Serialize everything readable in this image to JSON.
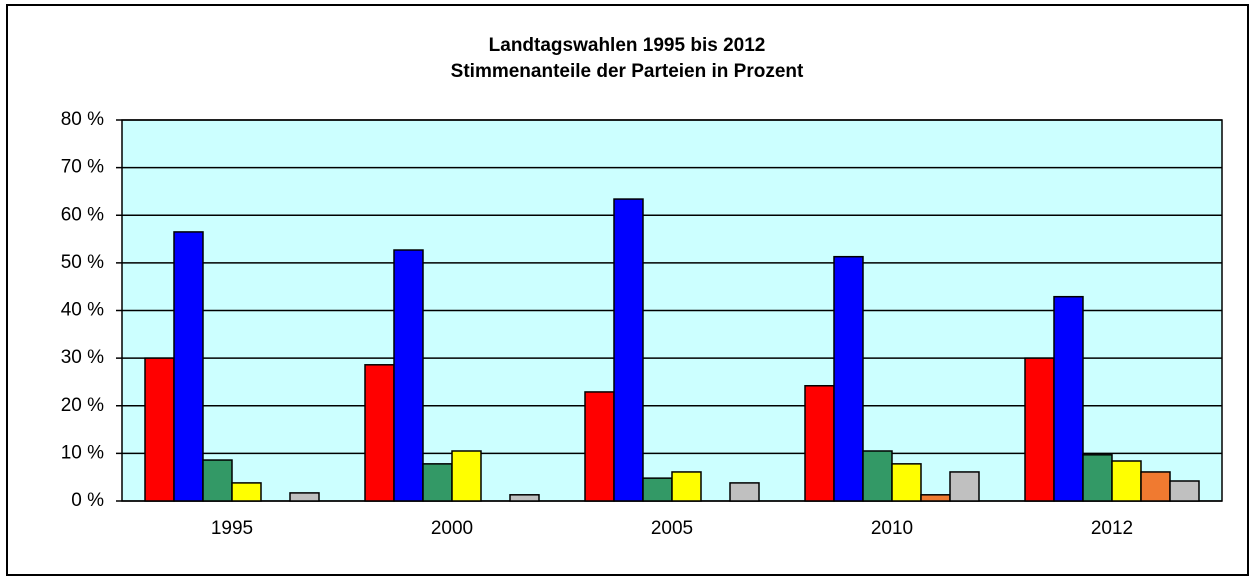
{
  "chart_data": {
    "type": "bar",
    "title": "Landtagswahlen 1995 bis 2012",
    "subtitle": "Stimmenanteile der Parteien in Prozent",
    "categories": [
      "1995",
      "2000",
      "2005",
      "2010",
      "2012"
    ],
    "series": [
      {
        "color": "#ff0000",
        "values": [
          30.0,
          28.6,
          22.9,
          24.2,
          30.0
        ]
      },
      {
        "color": "#0000ff",
        "values": [
          56.5,
          52.7,
          63.4,
          51.3,
          42.9
        ]
      },
      {
        "color": "#339966",
        "values": [
          8.6,
          7.8,
          4.8,
          10.5,
          9.7
        ]
      },
      {
        "color": "#ffff00",
        "values": [
          3.8,
          10.5,
          6.1,
          7.8,
          8.4
        ]
      },
      {
        "color": "#f07a30",
        "values": [
          null,
          null,
          null,
          1.3,
          6.1
        ]
      },
      {
        "color": "#c0c0c0",
        "values": [
          1.7,
          1.3,
          3.8,
          6.1,
          4.2
        ]
      }
    ],
    "ylim": [
      0,
      80
    ],
    "yticks": [
      {
        "value": 0,
        "label": "0 %"
      },
      {
        "value": 10,
        "label": "10 %"
      },
      {
        "value": 20,
        "label": "20 %"
      },
      {
        "value": 30,
        "label": "30 %"
      },
      {
        "value": 40,
        "label": "40 %"
      },
      {
        "value": 50,
        "label": "50 %"
      },
      {
        "value": 60,
        "label": "60 %"
      },
      {
        "value": 70,
        "label": "70 %"
      },
      {
        "value": 80,
        "label": "80 %"
      }
    ],
    "grid": true,
    "plot_background": "#ccffff"
  }
}
